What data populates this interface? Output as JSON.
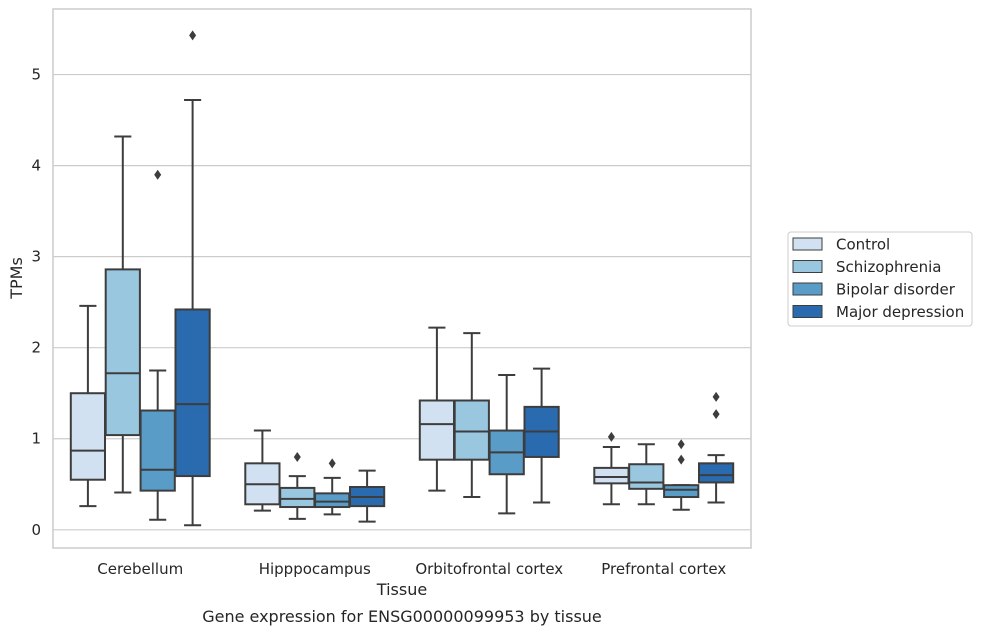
{
  "chart_data": {
    "type": "box",
    "title": "",
    "caption": "Gene expression for ENSG00000099953 by tissue",
    "xlabel": "Tissue",
    "ylabel": "TPMs",
    "ylim": [
      -0.2,
      5.72
    ],
    "yticks": [
      0,
      1,
      2,
      3,
      4,
      5
    ],
    "grid": true,
    "legend_placement": "right",
    "categories": [
      "Cerebellum",
      "Hipppocampus",
      "Orbitofrontal cortex",
      "Prefrontal cortex"
    ],
    "series": [
      {
        "name": "Control",
        "color": "#d1e1f1",
        "boxes": [
          {
            "whislo": 0.26,
            "q1": 0.55,
            "med": 0.87,
            "q3": 1.5,
            "whishi": 2.46,
            "fliers": []
          },
          {
            "whislo": 0.21,
            "q1": 0.28,
            "med": 0.5,
            "q3": 0.73,
            "whishi": 1.09,
            "fliers": []
          },
          {
            "whislo": 0.43,
            "q1": 0.77,
            "med": 1.16,
            "q3": 1.42,
            "whishi": 2.22,
            "fliers": []
          },
          {
            "whislo": 0.28,
            "q1": 0.51,
            "med": 0.58,
            "q3": 0.68,
            "whishi": 0.91,
            "fliers": [
              1.02
            ]
          }
        ]
      },
      {
        "name": "Schizophrenia",
        "color": "#9ac7e0",
        "boxes": [
          {
            "whislo": 0.41,
            "q1": 1.04,
            "med": 1.72,
            "q3": 2.86,
            "whishi": 4.32,
            "fliers": []
          },
          {
            "whislo": 0.12,
            "q1": 0.25,
            "med": 0.34,
            "q3": 0.46,
            "whishi": 0.59,
            "fliers": [
              0.8
            ]
          },
          {
            "whislo": 0.36,
            "q1": 0.77,
            "med": 1.08,
            "q3": 1.42,
            "whishi": 2.16,
            "fliers": []
          },
          {
            "whislo": 0.28,
            "q1": 0.45,
            "med": 0.52,
            "q3": 0.72,
            "whishi": 0.94,
            "fliers": []
          }
        ]
      },
      {
        "name": "Bipolar disorder",
        "color": "#5a9cc8",
        "boxes": [
          {
            "whislo": 0.11,
            "q1": 0.43,
            "med": 0.66,
            "q3": 1.31,
            "whishi": 1.75,
            "fliers": [
              3.9
            ]
          },
          {
            "whislo": 0.17,
            "q1": 0.25,
            "med": 0.31,
            "q3": 0.4,
            "whishi": 0.57,
            "fliers": [
              0.73
            ]
          },
          {
            "whislo": 0.18,
            "q1": 0.61,
            "med": 0.85,
            "q3": 1.09,
            "whishi": 1.7,
            "fliers": []
          },
          {
            "whislo": 0.22,
            "q1": 0.36,
            "med": 0.44,
            "q3": 0.49,
            "whishi": 0.49,
            "fliers": [
              0.77,
              0.94
            ]
          }
        ]
      },
      {
        "name": "Major depression",
        "color": "#2a6aae",
        "boxes": [
          {
            "whislo": 0.05,
            "q1": 0.59,
            "med": 1.38,
            "q3": 2.42,
            "whishi": 4.72,
            "fliers": [
              5.43
            ]
          },
          {
            "whislo": 0.09,
            "q1": 0.26,
            "med": 0.36,
            "q3": 0.47,
            "whishi": 0.65,
            "fliers": []
          },
          {
            "whislo": 0.3,
            "q1": 0.8,
            "med": 1.08,
            "q3": 1.35,
            "whishi": 1.77,
            "fliers": []
          },
          {
            "whislo": 0.3,
            "q1": 0.52,
            "med": 0.6,
            "q3": 0.73,
            "whishi": 0.82,
            "fliers": [
              1.27,
              1.46
            ]
          }
        ]
      }
    ]
  }
}
